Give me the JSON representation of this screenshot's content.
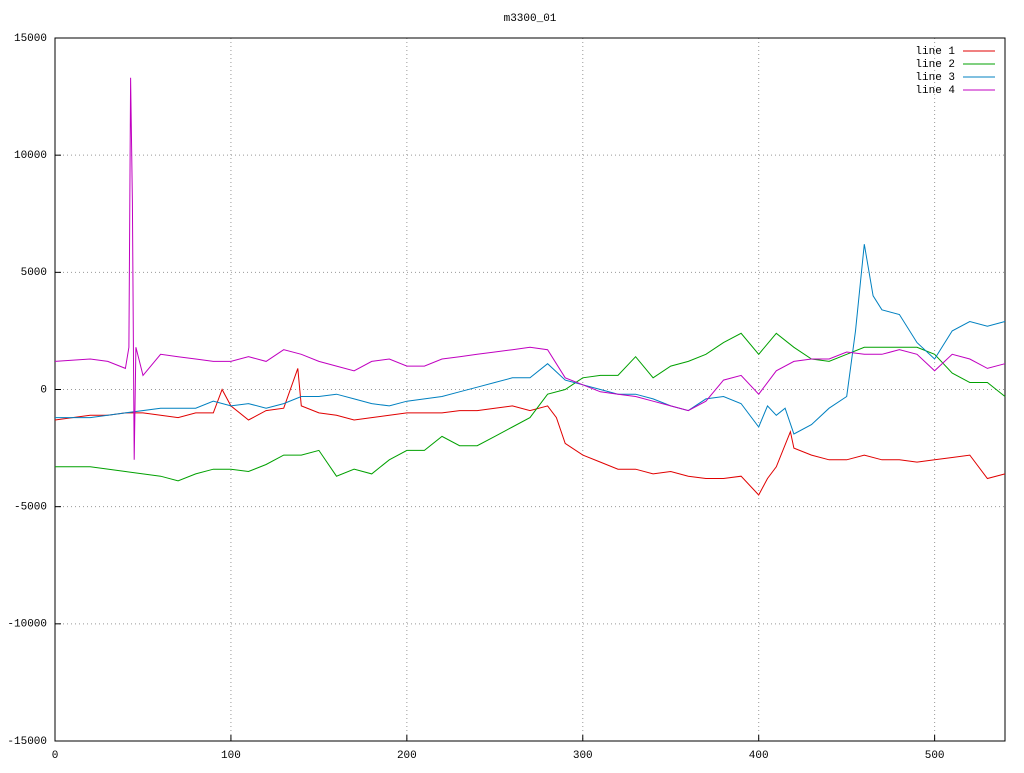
{
  "chart_data": {
    "type": "line",
    "title": "m3300_01",
    "xlim": [
      0,
      540
    ],
    "ylim": [
      -15000,
      15000
    ],
    "xticks": [
      0,
      100,
      200,
      300,
      400,
      500
    ],
    "yticks": [
      -15000,
      -10000,
      -5000,
      0,
      5000,
      10000,
      15000
    ],
    "grid": true,
    "legend": "top-right",
    "series": [
      {
        "name": "line 1",
        "color": "#e00000",
        "x": [
          0,
          10,
          20,
          30,
          40,
          50,
          60,
          70,
          80,
          90,
          95,
          100,
          110,
          120,
          130,
          138,
          140,
          150,
          160,
          170,
          180,
          190,
          200,
          210,
          220,
          230,
          240,
          250,
          260,
          270,
          280,
          285,
          290,
          300,
          310,
          320,
          330,
          340,
          350,
          360,
          370,
          380,
          390,
          400,
          405,
          410,
          418,
          420,
          430,
          440,
          450,
          460,
          470,
          480,
          490,
          500,
          510,
          520,
          530,
          540
        ],
        "values": [
          -1300,
          -1200,
          -1100,
          -1100,
          -1000,
          -1000,
          -1100,
          -1200,
          -1000,
          -1000,
          0,
          -700,
          -1300,
          -900,
          -800,
          900,
          -700,
          -1000,
          -1100,
          -1300,
          -1200,
          -1100,
          -1000,
          -1000,
          -1000,
          -900,
          -900,
          -800,
          -700,
          -900,
          -700,
          -1200,
          -2300,
          -2800,
          -3100,
          -3400,
          -3400,
          -3600,
          -3500,
          -3700,
          -3800,
          -3800,
          -3700,
          -4500,
          -3800,
          -3300,
          -1800,
          -2500,
          -2800,
          -3000,
          -3000,
          -2800,
          -3000,
          -3000,
          -3100,
          -3000,
          -2900,
          -2800,
          -3800,
          -3600
        ]
      },
      {
        "name": "line 2",
        "color": "#00a000",
        "x": [
          0,
          20,
          40,
          60,
          70,
          80,
          90,
          100,
          110,
          120,
          130,
          140,
          150,
          160,
          170,
          180,
          190,
          200,
          210,
          220,
          230,
          240,
          250,
          260,
          270,
          280,
          290,
          300,
          310,
          320,
          330,
          340,
          350,
          360,
          370,
          380,
          390,
          400,
          410,
          420,
          430,
          440,
          450,
          460,
          470,
          480,
          490,
          500,
          510,
          520,
          530,
          540
        ],
        "values": [
          -3300,
          -3300,
          -3500,
          -3700,
          -3900,
          -3600,
          -3400,
          -3400,
          -3500,
          -3200,
          -2800,
          -2800,
          -2600,
          -3700,
          -3400,
          -3600,
          -3000,
          -2600,
          -2600,
          -2000,
          -2400,
          -2400,
          -2000,
          -1600,
          -1200,
          -200,
          0,
          500,
          600,
          600,
          1400,
          500,
          1000,
          1200,
          1500,
          2000,
          2400,
          1500,
          2400,
          1800,
          1300,
          1200,
          1500,
          1800,
          1800,
          1800,
          1800,
          1500,
          700,
          300,
          300,
          -300
        ]
      },
      {
        "name": "line 3",
        "color": "#0080c0",
        "x": [
          0,
          20,
          40,
          60,
          80,
          90,
          100,
          110,
          120,
          130,
          140,
          150,
          160,
          170,
          180,
          190,
          200,
          210,
          220,
          230,
          240,
          250,
          260,
          270,
          280,
          290,
          300,
          310,
          320,
          330,
          340,
          350,
          360,
          370,
          380,
          390,
          400,
          405,
          410,
          415,
          420,
          430,
          440,
          450,
          455,
          460,
          465,
          470,
          480,
          490,
          500,
          510,
          520,
          530,
          540
        ],
        "values": [
          -1200,
          -1200,
          -1000,
          -800,
          -800,
          -500,
          -700,
          -600,
          -800,
          -600,
          -300,
          -300,
          -200,
          -400,
          -600,
          -700,
          -500,
          -400,
          -300,
          -100,
          100,
          300,
          500,
          500,
          1100,
          400,
          200,
          0,
          -200,
          -200,
          -400,
          -700,
          -900,
          -400,
          -300,
          -600,
          -1600,
          -700,
          -1100,
          -800,
          -1900,
          -1500,
          -800,
          -300,
          2500,
          6200,
          4000,
          3400,
          3200,
          2000,
          1300,
          2500,
          2900,
          2700,
          2900
        ]
      },
      {
        "name": "line 4",
        "color": "#c000c0",
        "x": [
          0,
          20,
          30,
          40,
          42,
          43,
          44,
          45,
          46,
          50,
          60,
          70,
          80,
          90,
          100,
          110,
          120,
          130,
          140,
          150,
          160,
          170,
          180,
          190,
          200,
          210,
          220,
          230,
          240,
          250,
          260,
          270,
          280,
          290,
          300,
          310,
          320,
          330,
          340,
          350,
          360,
          370,
          380,
          390,
          400,
          410,
          420,
          430,
          440,
          450,
          460,
          470,
          480,
          490,
          500,
          510,
          520,
          530,
          540
        ],
        "values": [
          1200,
          1300,
          1200,
          900,
          1800,
          13300,
          8000,
          -3000,
          1800,
          600,
          1500,
          1400,
          1300,
          1200,
          1200,
          1400,
          1200,
          1700,
          1500,
          1200,
          1000,
          800,
          1200,
          1300,
          1000,
          1000,
          1300,
          1400,
          1500,
          1600,
          1700,
          1800,
          1700,
          500,
          200,
          -100,
          -200,
          -300,
          -500,
          -700,
          -900,
          -500,
          400,
          600,
          -200,
          800,
          1200,
          1300,
          1300,
          1600,
          1500,
          1500,
          1700,
          1500,
          800,
          1500,
          1300,
          900,
          1100
        ]
      }
    ]
  }
}
